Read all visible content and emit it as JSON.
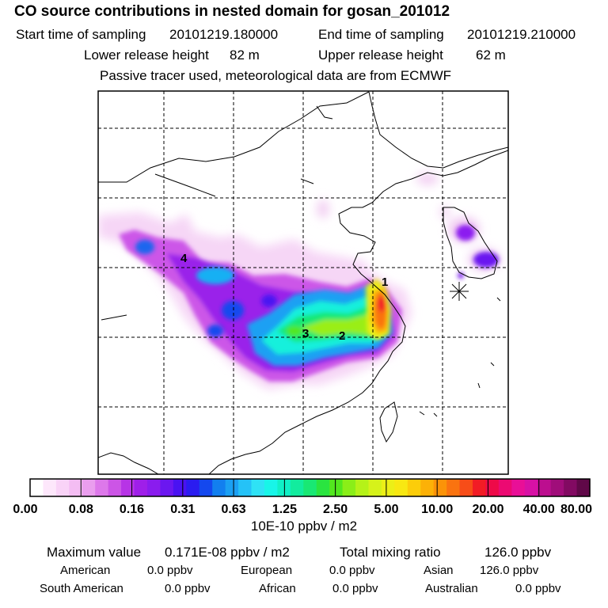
{
  "header": {
    "title": "CO  source contributions in nested domain for gosan_201012",
    "start_label": "Start time of sampling",
    "start_value": "20101219.180000",
    "end_label": "End time of sampling",
    "end_value": "20101219.210000",
    "lower_label": "Lower release height",
    "lower_value": "82 m",
    "upper_label": "Upper release height",
    "upper_value": "62 m",
    "tracer_note": "Passive tracer used, meteorological data are from ECMWF"
  },
  "chart_data": {
    "type": "heatmap",
    "title": "CO  source contributions in nested domain for gosan_201012",
    "colorbar_ticks": [
      "0.00",
      "0.08",
      "0.16",
      "0.31",
      "0.63",
      "1.25",
      "2.50",
      "5.00",
      "10.00",
      "20.00",
      "40.00",
      "80.00"
    ],
    "colorbar_unit": "10E-10 ppbv / m2",
    "colorbar_colors": [
      "#ffffff",
      "#fde7fb",
      "#f9d3f7",
      "#f4bdf3",
      "#ea9eee",
      "#dd78ea",
      "#cc55e6",
      "#b734e6",
      "#9f1fe9",
      "#8a1cee",
      "#6b17f0",
      "#4a12f2",
      "#2a1cf0",
      "#1448ee",
      "#127fef",
      "#1ba0f3",
      "#25c2f7",
      "#2fe2f5",
      "#18f5e8",
      "#10f0c6",
      "#12ec9e",
      "#19e874",
      "#2ae440",
      "#52e81e",
      "#8aee18",
      "#b5f218",
      "#d6f21a",
      "#ecef17",
      "#f8e812",
      "#fccd0a",
      "#fcb107",
      "#fb9308",
      "#fa7310",
      "#f74d18",
      "#f21c25",
      "#ee0a48",
      "#ec0a72",
      "#e90f97",
      "#d711a5",
      "#bc0e8f",
      "#a00d7a",
      "#820a62",
      "#600848"
    ],
    "gridlines": "dashed",
    "hotspot_labels": [
      "1",
      "2",
      "3",
      "4"
    ],
    "receptor_marker": "gosan-star"
  },
  "summary": {
    "max_label": "Maximum value",
    "max_value": "0.171E-08 ppbv / m2",
    "total_label": "Total mixing ratio",
    "total_value": "126.0 ppbv"
  },
  "regions": [
    {
      "name": "American",
      "value": "0.0 ppbv"
    },
    {
      "name": "European",
      "value": "0.0 ppbv"
    },
    {
      "name": "Asian",
      "value": "126.0 ppbv"
    },
    {
      "name": "South American",
      "value": "0.0 ppbv"
    },
    {
      "name": "African",
      "value": "0.0 ppbv"
    },
    {
      "name": "Australian",
      "value": "0.0 ppbv"
    }
  ]
}
